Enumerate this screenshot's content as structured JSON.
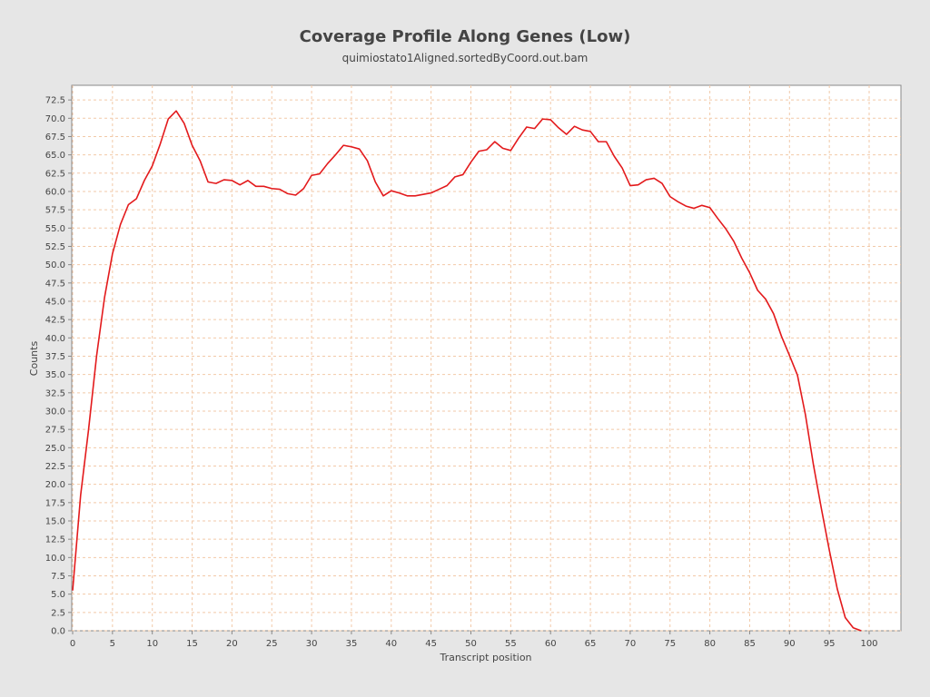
{
  "chart_data": {
    "type": "line",
    "title": "Coverage Profile Along Genes (Low)",
    "subtitle": "quimiostato1Aligned.sortedByCoord.out.bam",
    "xlabel": "Transcript position",
    "ylabel": "Counts",
    "xlim": [
      0,
      100
    ],
    "ylim": [
      0,
      74.5
    ],
    "x_ticks": [
      0,
      5,
      10,
      15,
      20,
      25,
      30,
      35,
      40,
      45,
      50,
      55,
      60,
      65,
      70,
      75,
      80,
      85,
      90,
      95,
      100
    ],
    "y_ticks": [
      "0.0",
      "2.5",
      "5.0",
      "7.5",
      "10.0",
      "12.5",
      "15.0",
      "17.5",
      "20.0",
      "22.5",
      "25.0",
      "27.5",
      "30.0",
      "32.5",
      "35.0",
      "37.5",
      "40.0",
      "42.5",
      "45.0",
      "47.5",
      "50.0",
      "52.5",
      "55.0",
      "57.5",
      "60.0",
      "62.5",
      "65.0",
      "67.5",
      "70.0",
      "72.5"
    ],
    "grid": true,
    "legend": "none",
    "series": [
      {
        "color": "#e31a1c",
        "x": [
          0,
          1,
          2,
          3,
          4,
          5,
          6,
          7,
          8,
          9,
          10,
          11,
          12,
          13,
          14,
          15,
          16,
          17,
          18,
          19,
          20,
          21,
          22,
          23,
          24,
          25,
          26,
          27,
          28,
          29,
          30,
          31,
          32,
          33,
          34,
          35,
          36,
          37,
          38,
          39,
          40,
          41,
          42,
          43,
          44,
          45,
          46,
          47,
          48,
          49,
          50,
          51,
          52,
          53,
          54,
          55,
          56,
          57,
          58,
          59,
          60,
          61,
          62,
          63,
          64,
          65,
          66,
          67,
          68,
          69,
          70,
          71,
          72,
          73,
          74,
          75,
          76,
          77,
          78,
          79,
          80,
          81,
          82,
          83,
          84,
          85,
          86,
          87,
          88,
          89,
          90,
          91,
          92,
          93,
          94,
          95,
          96,
          97,
          98,
          99
        ],
        "values": [
          5.5,
          18.5,
          27.5,
          37.5,
          45.5,
          51.5,
          55.5,
          58.2,
          59.0,
          61.5,
          63.5,
          66.5,
          69.9,
          71.0,
          69.3,
          66.3,
          64.2,
          61.3,
          61.1,
          61.6,
          61.5,
          60.9,
          61.5,
          60.7,
          60.7,
          60.4,
          60.3,
          59.7,
          59.5,
          60.4,
          62.2,
          62.4,
          63.8,
          65.0,
          66.3,
          66.1,
          65.8,
          64.2,
          61.3,
          59.4,
          60.1,
          59.8,
          59.4,
          59.4,
          59.6,
          59.8,
          60.3,
          60.8,
          62.0,
          62.3,
          64.0,
          65.5,
          65.7,
          66.8,
          65.9,
          65.6,
          67.3,
          68.8,
          68.6,
          69.9,
          69.8,
          68.7,
          67.8,
          68.9,
          68.4,
          68.2,
          66.8,
          66.8,
          64.8,
          63.2,
          60.8,
          60.9,
          61.6,
          61.8,
          61.1,
          59.3,
          58.6,
          58.0,
          57.7,
          58.1,
          57.8,
          56.3,
          54.9,
          53.2,
          50.9,
          48.9,
          46.5,
          45.3,
          43.3,
          40.2,
          37.6,
          34.9,
          29.5,
          22.7,
          16.7,
          11.0,
          5.7,
          1.8,
          0.4,
          0.0
        ]
      }
    ]
  }
}
